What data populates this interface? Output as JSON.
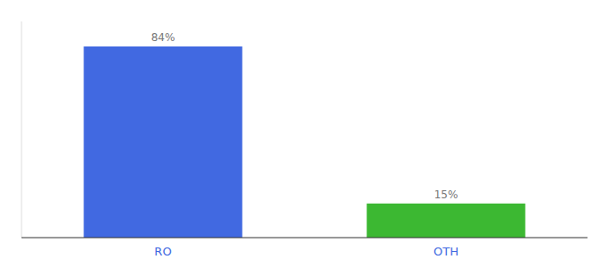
{
  "chart_data": {
    "type": "bar",
    "categories": [
      "RO",
      "OTH"
    ],
    "values": [
      84,
      15
    ],
    "colors": [
      "#4169e1",
      "#3cb832"
    ],
    "value_labels": [
      "84%",
      "15%"
    ],
    "data_labels": true,
    "ylim": [
      0,
      95
    ],
    "tick_labels": "x",
    "grid": false
  }
}
